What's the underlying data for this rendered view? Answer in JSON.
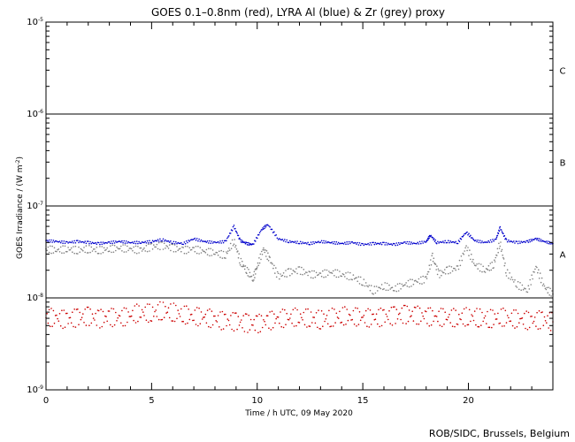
{
  "chart_data": {
    "type": "scatter",
    "title": "GOES 0.1–0.8nm (red), LYRA Al (blue) & Zr (grey) proxy",
    "xlabel": "Time / h UTC, 09 May 2020",
    "ylabel": "GOES Irradiance / (W m",
    "ylabel_sup": "-2",
    "ylabel_end": ")",
    "credit": "ROB/SIDC, Brussels, Belgium",
    "xlim": [
      0,
      24
    ],
    "ylim": [
      1e-09,
      1e-05
    ],
    "yscale": "log",
    "x_ticks": [
      {
        "value": 0,
        "label": "0"
      },
      {
        "value": 5,
        "label": "5"
      },
      {
        "value": 10,
        "label": "10"
      },
      {
        "value": 15,
        "label": "15"
      },
      {
        "value": 20,
        "label": "20"
      }
    ],
    "y_ticks": [
      {
        "value": 1e-09,
        "base": "10",
        "exp": "-9"
      },
      {
        "value": 1e-08,
        "base": "10",
        "exp": "-8"
      },
      {
        "value": 1e-07,
        "base": "10",
        "exp": "-7"
      },
      {
        "value": 1e-06,
        "base": "10",
        "exp": "-6"
      },
      {
        "value": 1e-05,
        "base": "10",
        "exp": "-5"
      }
    ],
    "flare_classes": [
      {
        "label": "A",
        "value": 3e-08
      },
      {
        "label": "B",
        "value": 3e-07
      },
      {
        "label": "C",
        "value": 3e-06
      }
    ],
    "class_lines": [
      1e-08,
      1e-07,
      1e-06
    ],
    "series": [
      {
        "color": "#0000cc",
        "points": [
          [
            0,
            4.2e-08
          ],
          [
            0.5,
            4.1e-08
          ],
          [
            1,
            4e-08
          ],
          [
            1.5,
            4.1e-08
          ],
          [
            2,
            4e-08
          ],
          [
            2.5,
            3.9e-08
          ],
          [
            3,
            4e-08
          ],
          [
            3.5,
            4.1e-08
          ],
          [
            4,
            4e-08
          ],
          [
            4.5,
            4e-08
          ],
          [
            5,
            4.1e-08
          ],
          [
            5.5,
            4.3e-08
          ],
          [
            6,
            4e-08
          ],
          [
            6.5,
            3.9e-08
          ],
          [
            7,
            4.4e-08
          ],
          [
            7.5,
            4.1e-08
          ],
          [
            8,
            4e-08
          ],
          [
            8.5,
            4.1e-08
          ],
          [
            8.9,
            6e-08
          ],
          [
            9.2,
            4.2e-08
          ],
          [
            9.5,
            3.9e-08
          ],
          [
            9.8,
            3.8e-08
          ],
          [
            10.2,
            5.5e-08
          ],
          [
            10.5,
            6.3e-08
          ],
          [
            11,
            4.4e-08
          ],
          [
            11.5,
            4.1e-08
          ],
          [
            12,
            4e-08
          ],
          [
            12.5,
            3.9e-08
          ],
          [
            13,
            4.1e-08
          ],
          [
            13.5,
            4e-08
          ],
          [
            14,
            3.9e-08
          ],
          [
            14.5,
            4e-08
          ],
          [
            15,
            3.8e-08
          ],
          [
            15.5,
            3.9e-08
          ],
          [
            16,
            3.9e-08
          ],
          [
            16.5,
            3.8e-08
          ],
          [
            17,
            4e-08
          ],
          [
            17.5,
            3.9e-08
          ],
          [
            18,
            4.1e-08
          ],
          [
            18.2,
            4.8e-08
          ],
          [
            18.5,
            4e-08
          ],
          [
            19,
            4.1e-08
          ],
          [
            19.5,
            4e-08
          ],
          [
            19.9,
            5.2e-08
          ],
          [
            20.3,
            4.2e-08
          ],
          [
            20.8,
            4e-08
          ],
          [
            21.3,
            4.3e-08
          ],
          [
            21.5,
            5.8e-08
          ],
          [
            21.8,
            4.2e-08
          ],
          [
            22.3,
            4e-08
          ],
          [
            22.8,
            4.1e-08
          ],
          [
            23.2,
            4.4e-08
          ],
          [
            23.6,
            4.1e-08
          ],
          [
            24,
            3.9e-08
          ]
        ]
      },
      {
        "color": "#808080",
        "points": [
          [
            0,
            3.4e-08
          ],
          [
            0.5,
            3.3e-08
          ],
          [
            1,
            3.4e-08
          ],
          [
            1.5,
            3.3e-08
          ],
          [
            2,
            3.4e-08
          ],
          [
            2.5,
            3.3e-08
          ],
          [
            3,
            3.4e-08
          ],
          [
            3.5,
            3.5e-08
          ],
          [
            4,
            3.4e-08
          ],
          [
            4.5,
            3.3e-08
          ],
          [
            5,
            3.6e-08
          ],
          [
            5.5,
            3.7e-08
          ],
          [
            6,
            3.5e-08
          ],
          [
            6.5,
            3.3e-08
          ],
          [
            7,
            3.4e-08
          ],
          [
            7.5,
            3.2e-08
          ],
          [
            8,
            3.1e-08
          ],
          [
            8.5,
            2.9e-08
          ],
          [
            8.9,
            4.2e-08
          ],
          [
            9.2,
            2.5e-08
          ],
          [
            9.5,
            2e-08
          ],
          [
            9.8,
            1.6e-08
          ],
          [
            10,
            2.2e-08
          ],
          [
            10.3,
            3.4e-08
          ],
          [
            10.6,
            2.6e-08
          ],
          [
            11,
            1.7e-08
          ],
          [
            11.5,
            1.9e-08
          ],
          [
            12,
            2e-08
          ],
          [
            12.5,
            1.8e-08
          ],
          [
            13,
            1.8e-08
          ],
          [
            13.5,
            1.9e-08
          ],
          [
            14,
            1.8e-08
          ],
          [
            14.5,
            1.7e-08
          ],
          [
            15,
            1.5e-08
          ],
          [
            15.5,
            1.2e-08
          ],
          [
            16,
            1.35e-08
          ],
          [
            16.5,
            1.25e-08
          ],
          [
            17,
            1.4e-08
          ],
          [
            17.5,
            1.5e-08
          ],
          [
            18,
            1.6e-08
          ],
          [
            18.3,
            2.8e-08
          ],
          [
            18.6,
            1.8e-08
          ],
          [
            19,
            2e-08
          ],
          [
            19.5,
            2.1e-08
          ],
          [
            19.9,
            3.6e-08
          ],
          [
            20.3,
            2.3e-08
          ],
          [
            20.8,
            2e-08
          ],
          [
            21.2,
            2.3e-08
          ],
          [
            21.5,
            4e-08
          ],
          [
            21.8,
            1.9e-08
          ],
          [
            22.3,
            1.4e-08
          ],
          [
            22.8,
            1.2e-08
          ],
          [
            23.2,
            2.2e-08
          ],
          [
            23.6,
            1.3e-08
          ],
          [
            24,
            1.1e-08
          ]
        ]
      },
      {
        "color": "#cc0000",
        "points": [
          [
            0,
            6.2e-09
          ],
          [
            0.5,
            6e-09
          ],
          [
            1,
            5.8e-09
          ],
          [
            1.5,
            6.1e-09
          ],
          [
            2,
            6.3e-09
          ],
          [
            2.5,
            5.9e-09
          ],
          [
            3,
            6.2e-09
          ],
          [
            3.5,
            6e-09
          ],
          [
            4,
            6.5e-09
          ],
          [
            4.5,
            7e-09
          ],
          [
            5,
            6.8e-09
          ],
          [
            5.5,
            7.3e-09
          ],
          [
            6,
            7e-09
          ],
          [
            6.5,
            6.6e-09
          ],
          [
            7,
            6.3e-09
          ],
          [
            7.5,
            6.2e-09
          ],
          [
            8,
            5.8e-09
          ],
          [
            8.5,
            5.6e-09
          ],
          [
            9,
            5.5e-09
          ],
          [
            9.5,
            5.3e-09
          ],
          [
            10,
            5.2e-09
          ],
          [
            10.5,
            5.6e-09
          ],
          [
            11,
            5.9e-09
          ],
          [
            11.5,
            6.1e-09
          ],
          [
            12,
            6.2e-09
          ],
          [
            12.5,
            6e-09
          ],
          [
            13,
            5.8e-09
          ],
          [
            13.5,
            6.1e-09
          ],
          [
            14,
            6.4e-09
          ],
          [
            14.5,
            6.3e-09
          ],
          [
            15,
            6.1e-09
          ],
          [
            15.5,
            6e-09
          ],
          [
            16,
            6.2e-09
          ],
          [
            16.5,
            6.4e-09
          ],
          [
            17,
            6.6e-09
          ],
          [
            17.5,
            6.5e-09
          ],
          [
            18,
            6.3e-09
          ],
          [
            18.5,
            6.1e-09
          ],
          [
            19,
            6.2e-09
          ],
          [
            19.5,
            6e-09
          ],
          [
            20,
            6.3e-09
          ],
          [
            20.5,
            6.1e-09
          ],
          [
            21,
            5.9e-09
          ],
          [
            21.5,
            6.2e-09
          ],
          [
            22,
            6e-09
          ],
          [
            22.5,
            5.8e-09
          ],
          [
            23,
            5.6e-09
          ],
          [
            23.5,
            5.8e-09
          ],
          [
            24,
            5.5e-09
          ]
        ]
      }
    ]
  }
}
